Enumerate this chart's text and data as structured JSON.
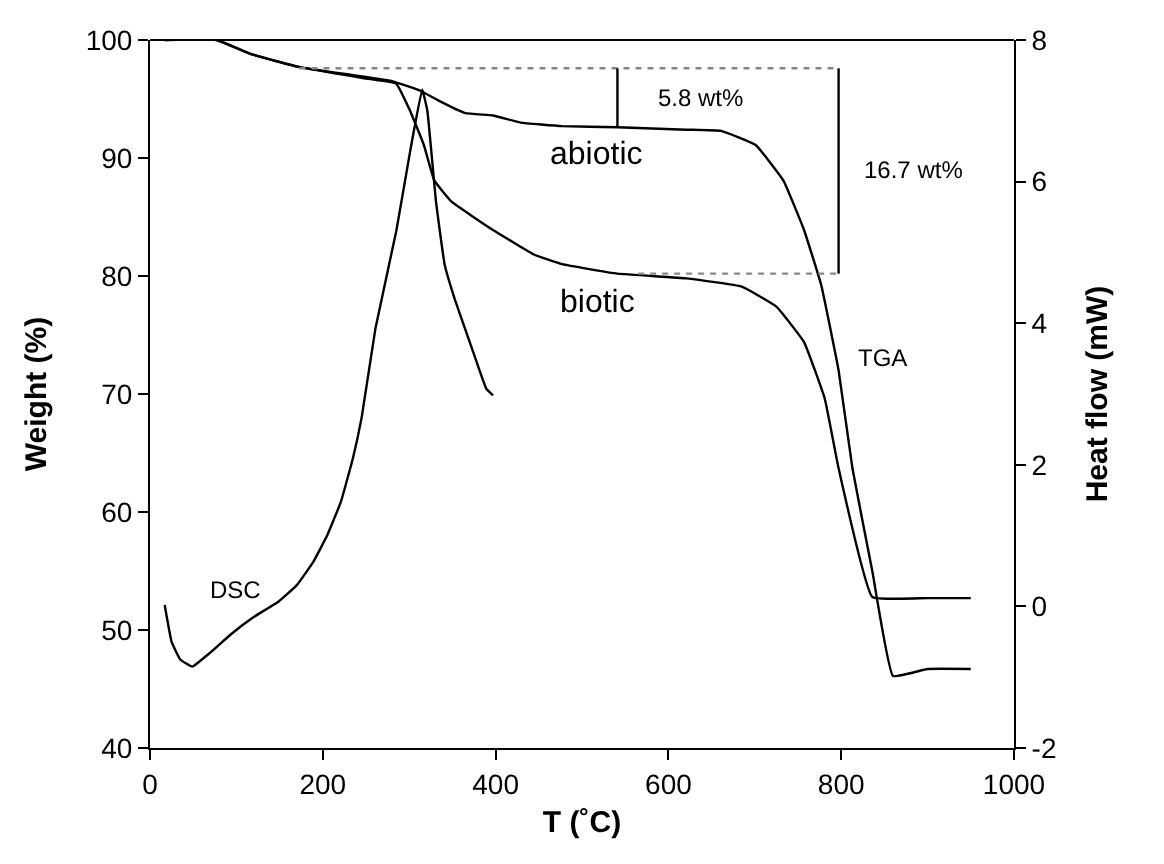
{
  "chart_data": {
    "type": "line",
    "xlabel": "T (˚C)",
    "ylabel": "Weight (%)",
    "y2label": "Heat flow (mW)",
    "xlim": [
      0,
      1000
    ],
    "xticks": [
      0,
      200,
      400,
      600,
      800,
      1000
    ],
    "ylim": [
      40,
      100
    ],
    "yticks": [
      40,
      50,
      60,
      70,
      80,
      90,
      100
    ],
    "y2lim": [
      -2,
      8
    ],
    "y2ticks": [
      -2,
      0,
      2,
      4,
      6,
      8
    ],
    "marker": "none",
    "line_style": "solid",
    "series": [
      {
        "color": "#000000",
        "axis": "y",
        "x": [
          17,
          77,
          117,
          173,
          237,
          281,
          313,
          333,
          365,
          397,
          429,
          477,
          541,
          621,
          661,
          701,
          733,
          757,
          777,
          797,
          813,
          836,
          860,
          900,
          950
        ],
        "values": [
          100,
          100,
          98.8,
          97.7,
          97.0,
          96.5,
          95.7,
          94.9,
          93.8,
          93.6,
          93.0,
          92.7,
          92.6,
          92.4,
          92.3,
          91.1,
          88.1,
          83.9,
          79.2,
          72.0,
          63.7,
          55.0,
          46.1,
          46.7,
          46.7
        ]
      },
      {
        "color": "#000000",
        "axis": "y",
        "x": [
          17,
          77,
          117,
          173,
          253,
          285,
          301,
          317,
          329,
          349,
          397,
          445,
          477,
          541,
          621,
          685,
          725,
          757,
          781,
          797,
          836,
          900,
          950
        ],
        "values": [
          100,
          100,
          98.8,
          97.7,
          96.7,
          96.3,
          94.0,
          91.1,
          88.1,
          86.3,
          83.9,
          81.8,
          81.0,
          80.2,
          79.8,
          79.1,
          77.4,
          74.4,
          69.6,
          63.7,
          52.8,
          52.7,
          52.7
        ]
      },
      {
        "color": "#000000",
        "axis": "y2",
        "x": [
          17,
          25,
          35,
          49,
          70,
          93,
          120,
          149,
          170,
          189,
          205,
          221,
          235,
          245,
          261,
          285,
          301,
          315,
          321,
          331,
          341,
          353,
          373,
          389,
          397
        ],
        "values": [
          0.02,
          -0.5,
          -0.75,
          -0.85,
          -0.65,
          -0.4,
          -0.15,
          0.07,
          0.3,
          0.63,
          1.0,
          1.48,
          2.1,
          2.67,
          3.93,
          5.3,
          6.42,
          7.3,
          7.0,
          5.72,
          4.83,
          4.33,
          3.63,
          3.08,
          2.98
        ]
      },
      {
        "color": "#888888",
        "axis": "y",
        "line_style": "dotted",
        "x": [
          173,
          797
        ],
        "values": [
          97.6,
          97.6
        ]
      },
      {
        "color": "#888888",
        "axis": "y",
        "line_style": "dotted",
        "x": [
          565,
          797
        ],
        "values": [
          80.2,
          80.2
        ]
      },
      {
        "color": "#000000",
        "axis": "y",
        "x": [
          541,
          541
        ],
        "values": [
          97.6,
          92.6
        ]
      },
      {
        "color": "#000000",
        "axis": "y",
        "x": [
          797,
          797
        ],
        "values": [
          97.6,
          80.2
        ]
      }
    ],
    "annotations": [
      "5.8 wt%",
      "16.7 wt%",
      "abiotic",
      "biotic",
      "TGA",
      "DSC"
    ]
  }
}
